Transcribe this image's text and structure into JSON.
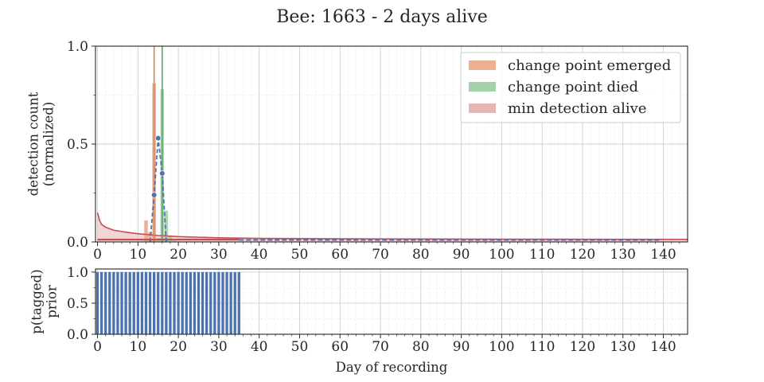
{
  "chart_data": [
    {
      "type": "line",
      "title": "Bee: 1663 - 2 days alive",
      "ylabel": "detection count\n(normalized)",
      "xlim": [
        -0.5,
        146
      ],
      "ylim": [
        0,
        1
      ],
      "xticks": [
        0,
        10,
        20,
        30,
        40,
        50,
        60,
        70,
        80,
        90,
        100,
        110,
        120,
        130,
        140
      ],
      "yticks": [
        0.0,
        0.5,
        1.0
      ],
      "ytick_labels": [
        "0.0",
        "0.5",
        "1.0"
      ],
      "grid": true,
      "legend": {
        "placement": "top-right",
        "entries": [
          {
            "label": "change point emerged",
            "color": "#eeb093"
          },
          {
            "label": "change point died",
            "color": "#a3d2aa"
          },
          {
            "label": "min detection alive",
            "color": "#e6b5b5"
          }
        ]
      },
      "change_point_emerged_day": 14,
      "change_point_died_day": 16,
      "emerged_histogram": [
        {
          "x": 12,
          "y": 0.11
        },
        {
          "x": 13,
          "y": 0.05
        },
        {
          "x": 14,
          "y": 0.81
        },
        {
          "x": 15,
          "y": 0.02
        }
      ],
      "died_histogram": [
        {
          "x": 15,
          "y": 0.02
        },
        {
          "x": 16,
          "y": 0.78
        },
        {
          "x": 17,
          "y": 0.16
        },
        {
          "x": 18,
          "y": 0.03
        },
        {
          "x": 19,
          "y": 0.01
        }
      ],
      "detections": [
        {
          "x": 13,
          "y": 0.0
        },
        {
          "x": 14,
          "y": 0.24
        },
        {
          "x": 15,
          "y": 0.53
        },
        {
          "x": 16,
          "y": 0.35
        },
        {
          "x": 17,
          "y": 0.0
        }
      ],
      "min_detection_curve": [
        {
          "x": 0,
          "y": 0.15
        },
        {
          "x": 0.5,
          "y": 0.11
        },
        {
          "x": 1,
          "y": 0.09
        },
        {
          "x": 2,
          "y": 0.075
        },
        {
          "x": 4,
          "y": 0.06
        },
        {
          "x": 7,
          "y": 0.05
        },
        {
          "x": 10,
          "y": 0.042
        },
        {
          "x": 15,
          "y": 0.033
        },
        {
          "x": 20,
          "y": 0.027
        },
        {
          "x": 30,
          "y": 0.021
        },
        {
          "x": 40,
          "y": 0.018
        },
        {
          "x": 60,
          "y": 0.016
        },
        {
          "x": 80,
          "y": 0.015
        },
        {
          "x": 100,
          "y": 0.014
        },
        {
          "x": 146,
          "y": 0.013
        }
      ],
      "series_colors": {
        "detections": "#4c72b0",
        "emerged": "#dd8452",
        "died": "#55a868",
        "min_detection": "#c44e52"
      }
    },
    {
      "type": "bar",
      "ylabel": "p(tagged)\nprior",
      "xlabel": "Day of recording",
      "xlim": [
        -0.5,
        146
      ],
      "ylim": [
        0,
        1.05
      ],
      "xticks": [
        0,
        10,
        20,
        30,
        40,
        50,
        60,
        70,
        80,
        90,
        100,
        110,
        120,
        130,
        140
      ],
      "yticks": [
        0.0,
        0.5,
        1.0
      ],
      "ytick_labels": [
        "0.0",
        "0.5",
        "1.0"
      ],
      "grid": true,
      "bar_color": "#4c72b0",
      "x_start": 0,
      "x_end": 35,
      "value": 1.0
    }
  ]
}
